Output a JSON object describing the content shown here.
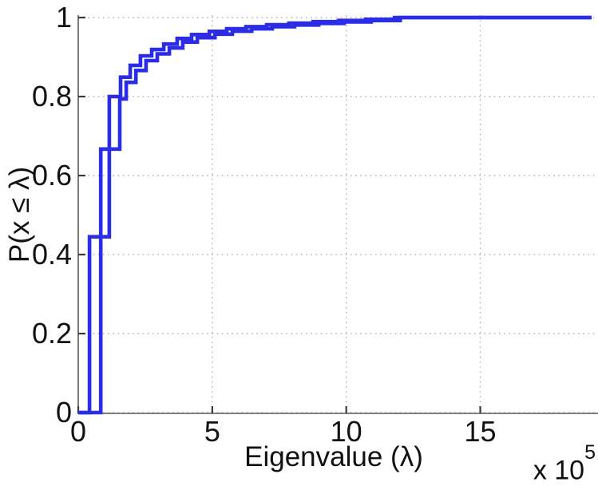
{
  "chart_data": {
    "type": "line",
    "subtype": "empirical-cdf-step-plot",
    "title": "",
    "xlabel": "Eigenvalue (λ)",
    "ylabel": "P(x ≤ λ)",
    "x_offset_label": {
      "base": "x 10",
      "exponent": "5"
    },
    "xlim": [
      0,
      19.4
    ],
    "ylim": [
      0,
      1
    ],
    "x_ticks": [
      0,
      5,
      10,
      15
    ],
    "x_tick_labels": [
      "0",
      "5",
      "10",
      "15"
    ],
    "y_ticks": [
      0,
      0.2,
      0.4,
      0.6,
      0.8,
      1
    ],
    "y_tick_labels": [
      "0",
      "0.2",
      "0.4",
      "0.6",
      "0.8",
      "1"
    ],
    "grid": "dotted",
    "legend": null,
    "line_color": "#2a2ce6",
    "grid_color": "#b3b3b3",
    "axis_color": "#6e6e6e",
    "tick_color": "#3a3a3a",
    "text_color": "#111111",
    "x_units": "1e5",
    "series": [
      {
        "name": "ecdf-curve-1",
        "start": [
          0,
          0
        ],
        "end_x": 19.15,
        "steps": [
          [
            0.42,
            0.445
          ],
          [
            1.16,
            0.8
          ],
          [
            1.58,
            0.849
          ],
          [
            1.94,
            0.879
          ],
          [
            2.32,
            0.903
          ],
          [
            2.74,
            0.919
          ],
          [
            3.19,
            0.933
          ],
          [
            3.69,
            0.947
          ],
          [
            4.23,
            0.957
          ],
          [
            4.89,
            0.965
          ],
          [
            5.54,
            0.9715
          ],
          [
            6.26,
            0.977
          ],
          [
            7.03,
            0.9818
          ],
          [
            7.86,
            0.9858
          ],
          [
            8.76,
            0.9894
          ],
          [
            9.71,
            0.9926
          ],
          [
            10.72,
            0.9956
          ],
          [
            11.8,
            1.0
          ]
        ]
      },
      {
        "name": "ecdf-curve-2",
        "start": [
          0,
          0
        ],
        "end_x": 19.15,
        "steps": [
          [
            0.84,
            0.667
          ],
          [
            1.55,
            0.794
          ],
          [
            1.79,
            0.836
          ],
          [
            2.15,
            0.866
          ],
          [
            2.53,
            0.891
          ],
          [
            2.95,
            0.908
          ],
          [
            3.4,
            0.923
          ],
          [
            3.9,
            0.938
          ],
          [
            4.44,
            0.949
          ],
          [
            5.1,
            0.958
          ],
          [
            5.75,
            0.9655
          ],
          [
            6.47,
            0.9715
          ],
          [
            7.24,
            0.9768
          ],
          [
            8.07,
            0.9813
          ],
          [
            8.97,
            0.9853
          ],
          [
            9.92,
            0.9891
          ],
          [
            10.93,
            0.9925
          ],
          [
            12.01,
            1.0
          ]
        ]
      }
    ]
  }
}
